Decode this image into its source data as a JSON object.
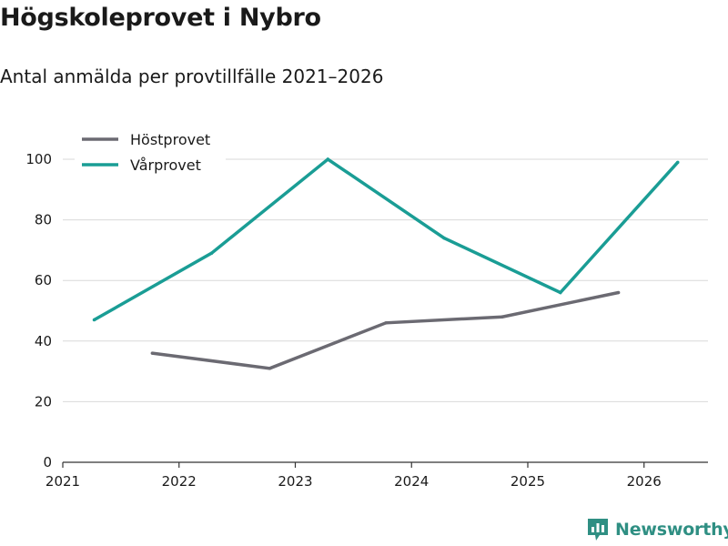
{
  "header": {
    "title": "Högskoleprovet i Nybro",
    "subtitle": "Antal anmälda per provtillfälle 2021–2026"
  },
  "brand": {
    "name": "Newsworthy",
    "icon": "newsworthy-logo-icon",
    "color": "#2f8f83"
  },
  "chart_data": {
    "type": "line",
    "title": "Högskoleprovet i Nybro",
    "subtitle": "Antal anmälda per provtillfälle 2021–2026",
    "xlabel": "",
    "ylabel": "",
    "xlim": [
      2021,
      2026.55
    ],
    "ylim": [
      0,
      100
    ],
    "x_ticks": [
      "2021",
      "2022",
      "2023",
      "2024",
      "2025",
      "2026"
    ],
    "y_ticks": [
      0,
      20,
      40,
      60,
      80,
      100
    ],
    "grid": "horizontal",
    "legend_position": "top-left",
    "series": [
      {
        "name": "Höstprovet",
        "color": "#6b6a72",
        "x": [
          2021.77,
          2022.78,
          2023.78,
          2024.78,
          2025.78
        ],
        "values": [
          36,
          31,
          46,
          48,
          56
        ]
      },
      {
        "name": "Vårprovet",
        "color": "#1a9d95",
        "x": [
          2021.27,
          2022.28,
          2023.28,
          2024.28,
          2025.28,
          2026.29
        ],
        "values": [
          47,
          69,
          100,
          74,
          56,
          99
        ]
      }
    ]
  }
}
